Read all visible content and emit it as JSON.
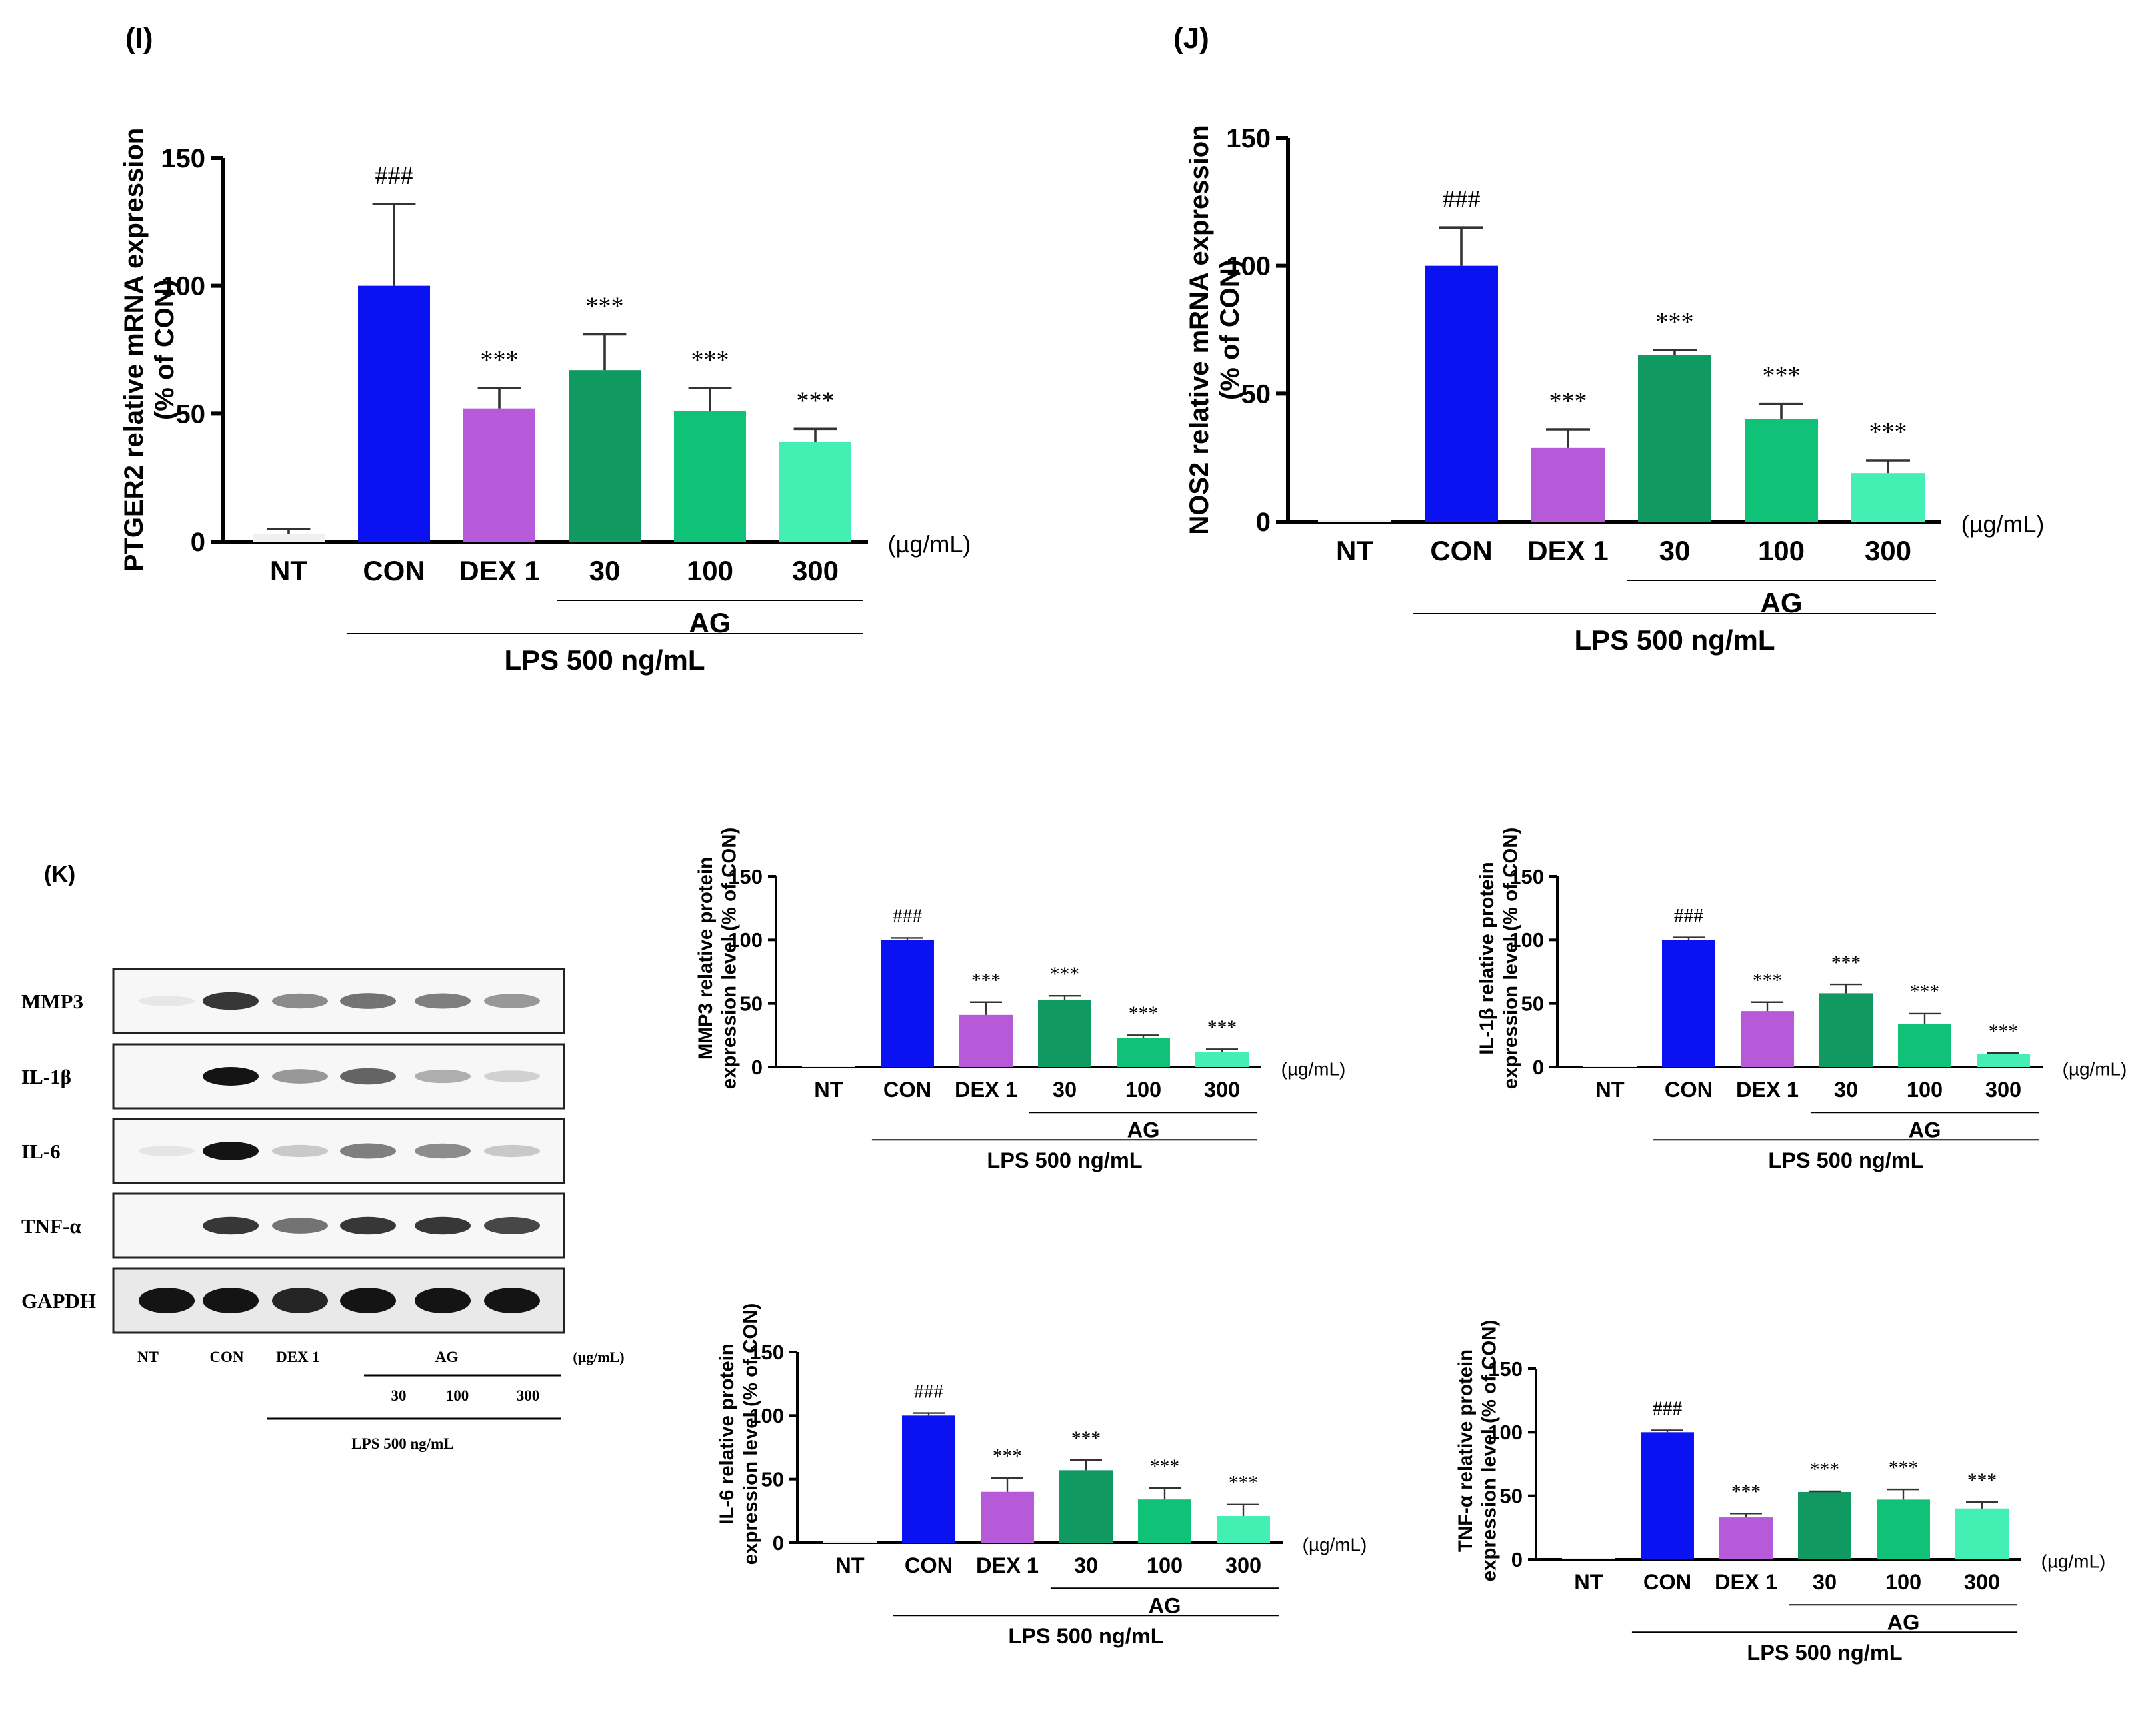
{
  "chart_data": [
    {
      "panel": "(I)",
      "type": "bar",
      "ylabel_lines": [
        "PTGER2 relative mRNA expression",
        "(% of CON)"
      ],
      "categories": [
        "NT",
        "CON",
        "DEX 1",
        "30",
        "100",
        "300"
      ],
      "values": [
        3,
        100,
        52,
        67,
        51,
        39
      ],
      "errors": [
        2,
        32,
        8,
        14,
        9,
        5
      ],
      "significance": [
        "",
        "###",
        "***",
        "***",
        "***",
        "***"
      ],
      "yticks": [
        "0",
        "50",
        "100",
        "150"
      ],
      "ylim": [
        0,
        150
      ],
      "unit": "(µg/mL)",
      "group_label": "AG",
      "treatment_label": "LPS 500 ng/mL"
    },
    {
      "panel": "(J)",
      "type": "bar",
      "ylabel_lines": [
        "NOS2 relative mRNA expression",
        "(% of CON)"
      ],
      "categories": [
        "NT",
        "CON",
        "DEX 1",
        "30",
        "100",
        "300"
      ],
      "values": [
        0,
        100,
        29,
        65,
        40,
        19
      ],
      "errors": [
        0,
        15,
        7,
        2,
        6,
        5
      ],
      "significance": [
        "",
        "###",
        "***",
        "***",
        "***",
        "***"
      ],
      "yticks": [
        "0",
        "50",
        "100",
        "150"
      ],
      "ylim": [
        0,
        150
      ],
      "unit": "(µg/mL)",
      "group_label": "AG",
      "treatment_label": "LPS 500 ng/mL"
    },
    {
      "type": "bar",
      "ylabel_lines": [
        "MMP3 relative protein",
        "expression level (% of CON)"
      ],
      "categories": [
        "NT",
        "CON",
        "DEX 1",
        "30",
        "100",
        "300"
      ],
      "values": [
        0,
        100,
        41,
        53,
        23,
        12
      ],
      "errors": [
        0,
        1.5,
        10,
        3,
        2,
        2
      ],
      "significance": [
        "",
        "###",
        "***",
        "***",
        "***",
        "***"
      ],
      "yticks": [
        "0",
        "50",
        "100",
        "150"
      ],
      "ylim": [
        0,
        150
      ],
      "unit": "(µg/mL)",
      "group_label": "AG",
      "treatment_label": "LPS 500 ng/mL"
    },
    {
      "type": "bar",
      "ylabel_lines": [
        "IL-1β relative protein",
        "expression level  (% of CON)"
      ],
      "categories": [
        "NT",
        "CON",
        "DEX 1",
        "30",
        "100",
        "300"
      ],
      "values": [
        0,
        100,
        44,
        58,
        34,
        10
      ],
      "errors": [
        0,
        2,
        7,
        7,
        8,
        1
      ],
      "significance": [
        "",
        "###",
        "***",
        "***",
        "***",
        "***"
      ],
      "yticks": [
        "0",
        "50",
        "100",
        "150"
      ],
      "ylim": [
        0,
        150
      ],
      "unit": "(µg/mL)",
      "group_label": "AG",
      "treatment_label": "LPS 500 ng/mL"
    },
    {
      "type": "bar",
      "ylabel_lines": [
        "IL-6 relative protein",
        "expression level (% of CON)"
      ],
      "categories": [
        "NT",
        "CON",
        "DEX 1",
        "30",
        "100",
        "300"
      ],
      "values": [
        0,
        100,
        40,
        57,
        34,
        21
      ],
      "errors": [
        0,
        2,
        11,
        8,
        9,
        9
      ],
      "significance": [
        "",
        "###",
        "***",
        "***",
        "***",
        "***"
      ],
      "yticks": [
        "0",
        "50",
        "100",
        "150"
      ],
      "ylim": [
        0,
        150
      ],
      "unit": "(µg/mL)",
      "group_label": "AG",
      "treatment_label": "LPS 500 ng/mL"
    },
    {
      "type": "bar",
      "ylabel_lines": [
        "TNF-α relative protein",
        "expression level (% of CON)"
      ],
      "categories": [
        "NT",
        "CON",
        "DEX 1",
        "30",
        "100",
        "300"
      ],
      "values": [
        0,
        100,
        33,
        53,
        47,
        40
      ],
      "errors": [
        0,
        1.5,
        3,
        0.5,
        8,
        5
      ],
      "significance": [
        "",
        "###",
        "***",
        "***",
        "***",
        "***"
      ],
      "yticks": [
        "0",
        "50",
        "100",
        "150"
      ],
      "ylim": [
        0,
        150
      ],
      "unit": "(µg/mL)",
      "group_label": "AG",
      "treatment_label": "LPS 500 ng/mL"
    }
  ],
  "colors": [
    "#f0f0f0",
    "#0a12f2",
    "#b65ad9",
    "#109960",
    "#0fc277",
    "#43efb3"
  ],
  "blot": {
    "panel": "(K)",
    "rows": [
      {
        "label": "MMP3",
        "intensities": [
          0.08,
          0.9,
          0.6,
          0.7,
          0.65,
          0.55
        ]
      },
      {
        "label": "IL-1β",
        "intensities": [
          0.0,
          1.0,
          0.55,
          0.75,
          0.45,
          0.25
        ]
      },
      {
        "label": "IL-6",
        "intensities": [
          0.1,
          1.0,
          0.3,
          0.65,
          0.6,
          0.3
        ]
      },
      {
        "label": "TNF-α",
        "intensities": [
          0.0,
          0.9,
          0.7,
          0.9,
          0.9,
          0.85
        ]
      },
      {
        "label": "GAPDH",
        "intensities": [
          1.0,
          1.0,
          0.95,
          1.0,
          1.0,
          1.0
        ]
      }
    ],
    "lane_labels": [
      "NT",
      "CON",
      "DEX 1"
    ],
    "ag_label": "AG",
    "unit": "(μg/mL)",
    "doses": [
      "30",
      "100",
      "300"
    ],
    "treatment_label": "LPS 500 ng/mL"
  }
}
